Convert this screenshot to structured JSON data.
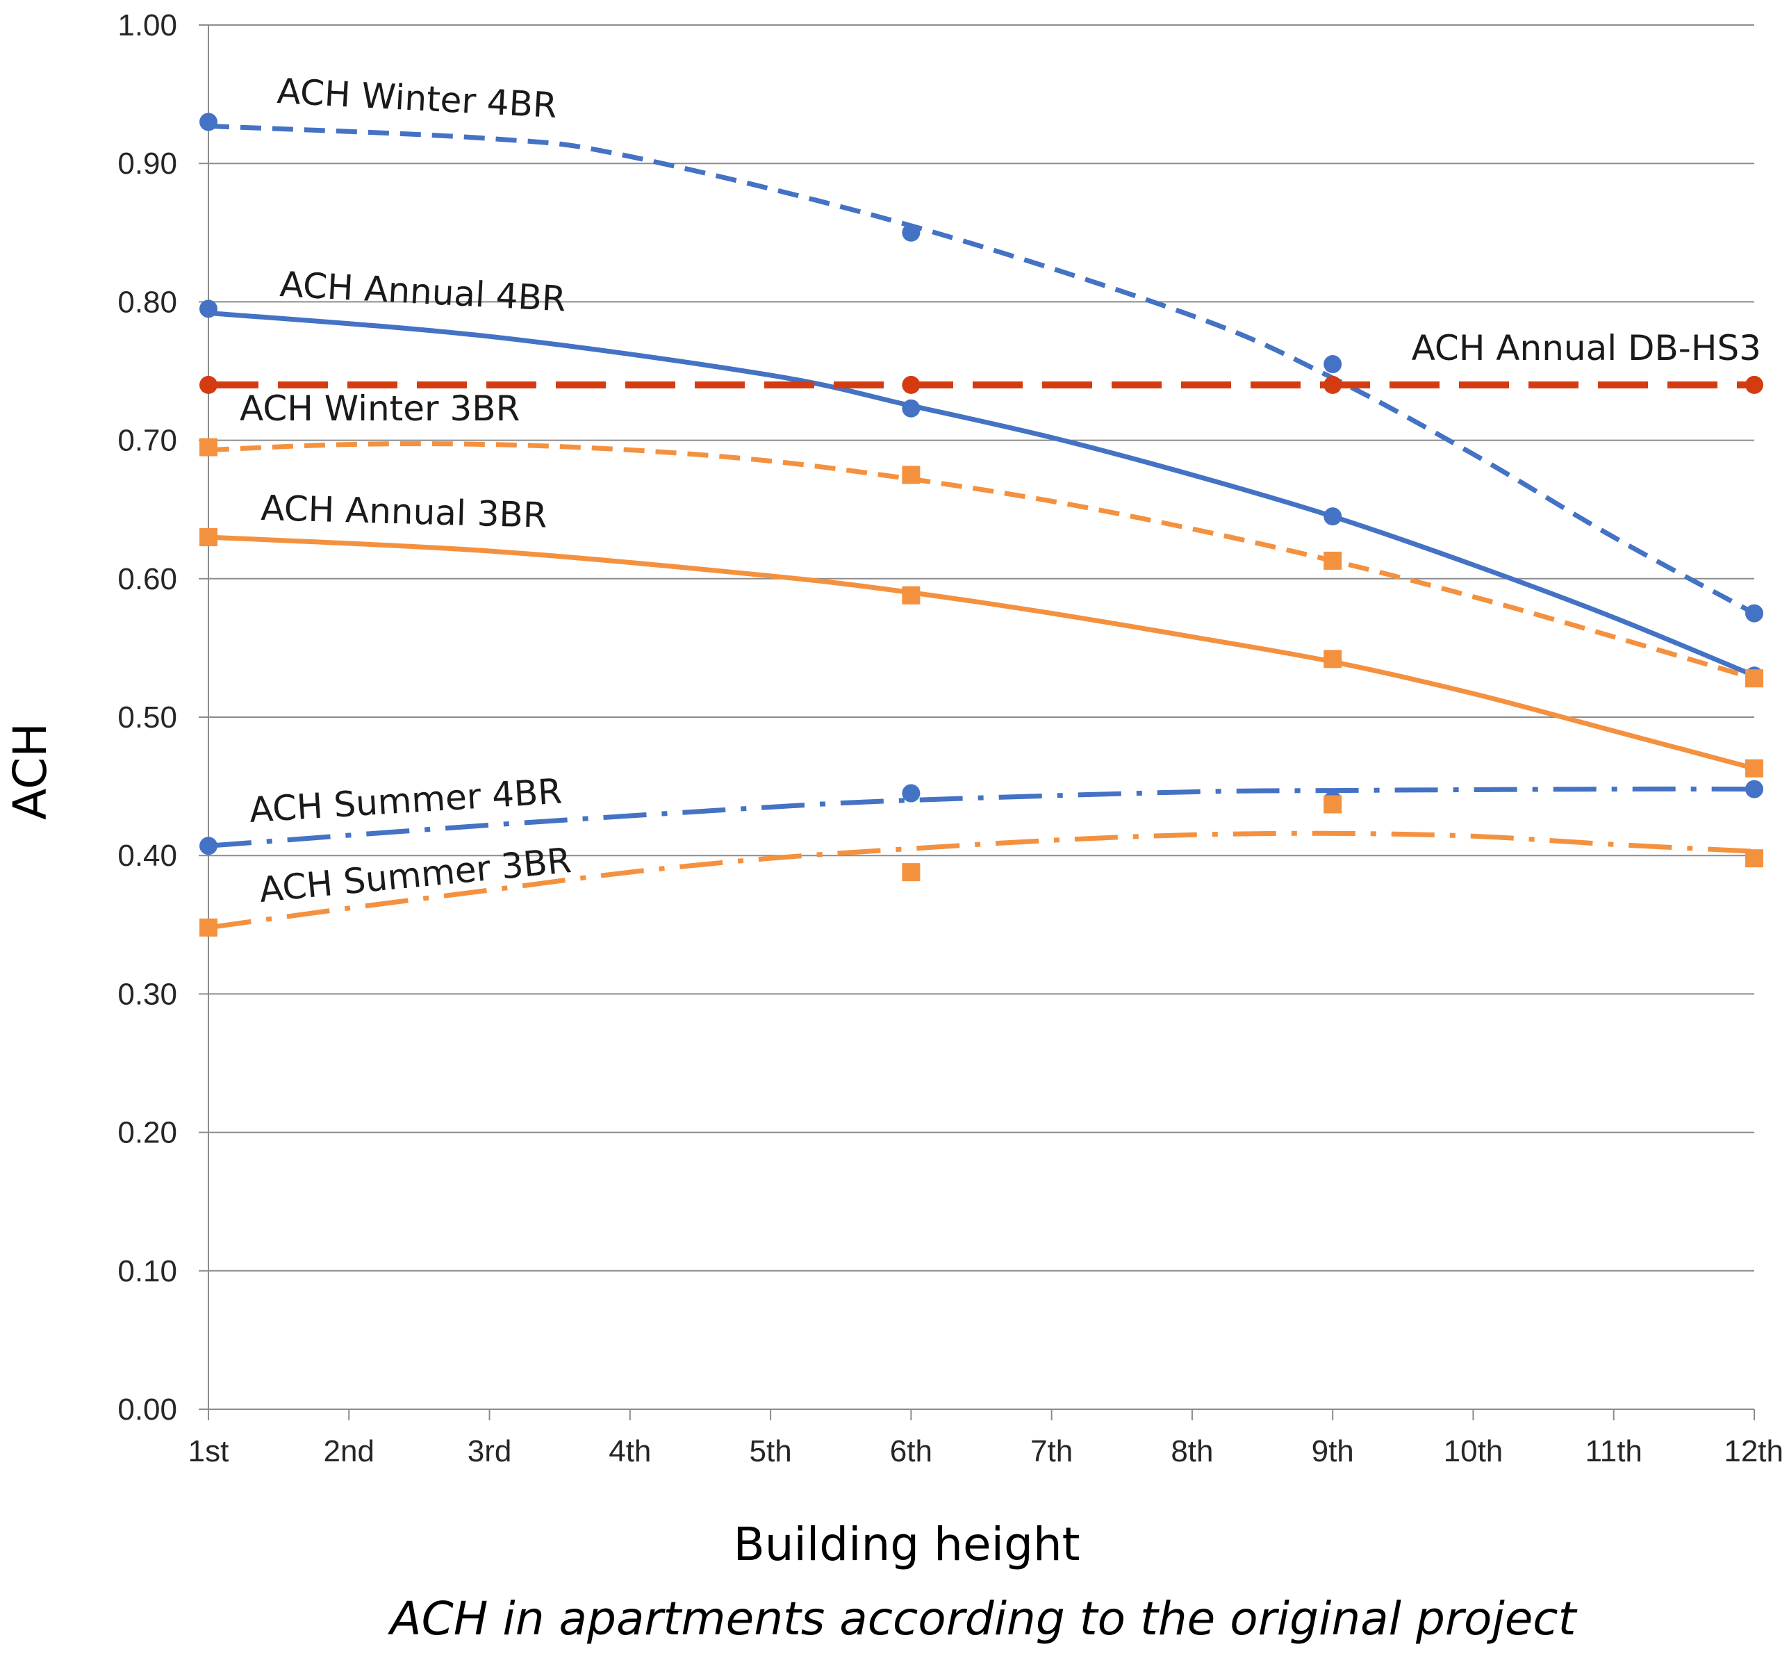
{
  "chart_data": {
    "type": "line",
    "title": "",
    "caption": "ACH in apartments according to the original project",
    "xlabel": "Building height",
    "ylabel": "ACH",
    "ylim": [
      0,
      1.0
    ],
    "yticks": [
      "0.00",
      "0.10",
      "0.20",
      "0.30",
      "0.40",
      "0.50",
      "0.60",
      "0.70",
      "0.80",
      "0.90",
      "1.00"
    ],
    "categories": [
      "1st",
      "2nd",
      "3rd",
      "4th",
      "5th",
      "6th",
      "7th",
      "8th",
      "9th",
      "10th",
      "11th",
      "12th"
    ],
    "grid": true,
    "series": [
      {
        "name": "ACH Winter 4BR",
        "color": "#4472C4",
        "marker": "circle",
        "line_style": "dashed",
        "points": [
          {
            "x": 1,
            "y": 0.93
          },
          {
            "x": 6,
            "y": 0.85
          },
          {
            "x": 9,
            "y": 0.755
          },
          {
            "x": 12,
            "y": 0.575
          }
        ],
        "trend": [
          {
            "x": 1,
            "y": 0.927
          },
          {
            "x": 3,
            "y": 0.918
          },
          {
            "x": 4,
            "y": 0.905
          },
          {
            "x": 6,
            "y": 0.855
          },
          {
            "x": 8,
            "y": 0.79
          },
          {
            "x": 9,
            "y": 0.745
          },
          {
            "x": 10,
            "y": 0.69
          },
          {
            "x": 11,
            "y": 0.63
          },
          {
            "x": 12,
            "y": 0.575
          }
        ]
      },
      {
        "name": "ACH Annual 4BR",
        "color": "#4472C4",
        "marker": "circle",
        "line_style": "solid",
        "points": [
          {
            "x": 1,
            "y": 0.795
          },
          {
            "x": 6,
            "y": 0.723
          },
          {
            "x": 9,
            "y": 0.645
          },
          {
            "x": 12,
            "y": 0.53
          }
        ],
        "trend": [
          {
            "x": 1,
            "y": 0.792
          },
          {
            "x": 3,
            "y": 0.775
          },
          {
            "x": 5,
            "y": 0.747
          },
          {
            "x": 6,
            "y": 0.725
          },
          {
            "x": 7,
            "y": 0.702
          },
          {
            "x": 8,
            "y": 0.675
          },
          {
            "x": 9,
            "y": 0.645
          },
          {
            "x": 10,
            "y": 0.61
          },
          {
            "x": 11,
            "y": 0.572
          },
          {
            "x": 12,
            "y": 0.53
          }
        ]
      },
      {
        "name": "ACH Annual DB-HS3",
        "color": "#D43B11",
        "marker": "circle",
        "line_style": "long-dashed",
        "points": [
          {
            "x": 1,
            "y": 0.74
          },
          {
            "x": 6,
            "y": 0.74
          },
          {
            "x": 9,
            "y": 0.74
          },
          {
            "x": 12,
            "y": 0.74
          }
        ],
        "trend": [
          {
            "x": 1,
            "y": 0.74
          },
          {
            "x": 12,
            "y": 0.74
          }
        ]
      },
      {
        "name": "ACH Winter 3BR",
        "color": "#F4913F",
        "marker": "square",
        "line_style": "dashed",
        "points": [
          {
            "x": 1,
            "y": 0.695
          },
          {
            "x": 6,
            "y": 0.675
          },
          {
            "x": 9,
            "y": 0.613
          },
          {
            "x": 12,
            "y": 0.528
          }
        ],
        "trend": [
          {
            "x": 1,
            "y": 0.693
          },
          {
            "x": 2,
            "y": 0.697
          },
          {
            "x": 3,
            "y": 0.697
          },
          {
            "x": 4,
            "y": 0.693
          },
          {
            "x": 5,
            "y": 0.685
          },
          {
            "x": 6,
            "y": 0.672
          },
          {
            "x": 7,
            "y": 0.656
          },
          {
            "x": 8,
            "y": 0.636
          },
          {
            "x": 9,
            "y": 0.613
          },
          {
            "x": 10,
            "y": 0.587
          },
          {
            "x": 11,
            "y": 0.558
          },
          {
            "x": 12,
            "y": 0.528
          }
        ]
      },
      {
        "name": "ACH Annual 3BR",
        "color": "#F4913F",
        "marker": "square",
        "line_style": "solid",
        "points": [
          {
            "x": 1,
            "y": 0.63
          },
          {
            "x": 6,
            "y": 0.588
          },
          {
            "x": 9,
            "y": 0.542
          },
          {
            "x": 12,
            "y": 0.463
          }
        ],
        "trend": [
          {
            "x": 1,
            "y": 0.63
          },
          {
            "x": 3,
            "y": 0.62
          },
          {
            "x": 5,
            "y": 0.602
          },
          {
            "x": 6,
            "y": 0.59
          },
          {
            "x": 7,
            "y": 0.575
          },
          {
            "x": 8,
            "y": 0.558
          },
          {
            "x": 9,
            "y": 0.54
          },
          {
            "x": 10,
            "y": 0.517
          },
          {
            "x": 11,
            "y": 0.49
          },
          {
            "x": 12,
            "y": 0.463
          }
        ]
      },
      {
        "name": "ACH Summer 4BR",
        "color": "#4472C4",
        "marker": "circle",
        "line_style": "dash-dot",
        "points": [
          {
            "x": 1,
            "y": 0.407
          },
          {
            "x": 6,
            "y": 0.445
          },
          {
            "x": 9,
            "y": 0.44
          },
          {
            "x": 12,
            "y": 0.448
          }
        ],
        "trend": [
          {
            "x": 1,
            "y": 0.407
          },
          {
            "x": 3,
            "y": 0.422
          },
          {
            "x": 5,
            "y": 0.435
          },
          {
            "x": 6,
            "y": 0.44
          },
          {
            "x": 8,
            "y": 0.446
          },
          {
            "x": 9,
            "y": 0.447
          },
          {
            "x": 11,
            "y": 0.448
          },
          {
            "x": 12,
            "y": 0.448
          }
        ]
      },
      {
        "name": "ACH Summer 3BR",
        "color": "#F4913F",
        "marker": "square",
        "line_style": "dash-dot",
        "points": [
          {
            "x": 1,
            "y": 0.348
          },
          {
            "x": 6,
            "y": 0.388
          },
          {
            "x": 9,
            "y": 0.437
          },
          {
            "x": 12,
            "y": 0.398
          }
        ],
        "trend": [
          {
            "x": 1,
            "y": 0.348
          },
          {
            "x": 2,
            "y": 0.362
          },
          {
            "x": 3,
            "y": 0.375
          },
          {
            "x": 4,
            "y": 0.388
          },
          {
            "x": 5,
            "y": 0.398
          },
          {
            "x": 6,
            "y": 0.405
          },
          {
            "x": 7,
            "y": 0.411
          },
          {
            "x": 8,
            "y": 0.415
          },
          {
            "x": 9,
            "y": 0.416
          },
          {
            "x": 10,
            "y": 0.414
          },
          {
            "x": 11,
            "y": 0.408
          },
          {
            "x": 12,
            "y": 0.403
          }
        ]
      }
    ]
  }
}
